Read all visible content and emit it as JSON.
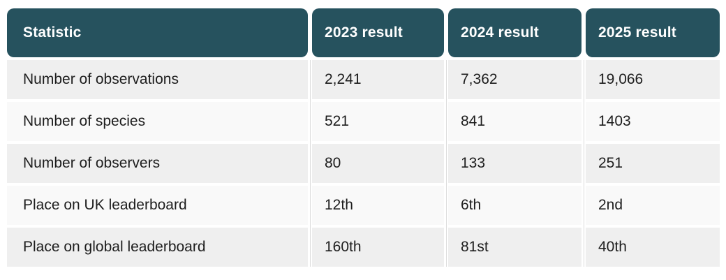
{
  "chart_data": {
    "type": "table",
    "columns": [
      "Statistic",
      "2023 result",
      "2024 result",
      "2025 result"
    ],
    "rows": [
      [
        "Number of observations",
        "2,241",
        "7,362",
        "19,066"
      ],
      [
        "Number of species",
        "521",
        "841",
        "1403"
      ],
      [
        "Number of observers",
        "80",
        "133",
        "251"
      ],
      [
        "Place on UK leaderboard",
        "12th",
        "6th",
        "2nd"
      ],
      [
        "Place on global leaderboard",
        "160th",
        "81st",
        "40th"
      ]
    ]
  },
  "colors": {
    "header_bg": "#26525e",
    "header_text": "#ffffff",
    "row_odd_bg": "#efefef",
    "row_even_bg": "#f9f9f9",
    "body_text": "#1d1d1d",
    "divider": "#dcdcdc",
    "page_bg": "#ffffff"
  }
}
